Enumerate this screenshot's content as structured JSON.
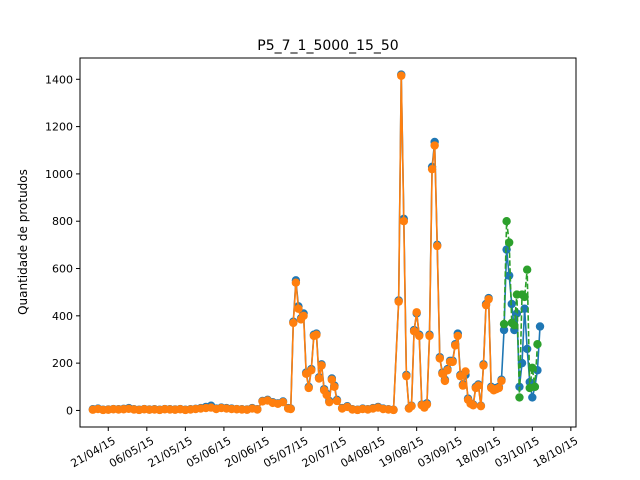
{
  "chart_data": {
    "type": "line",
    "title": "P5_7_1_5000_15_50",
    "xlabel": "",
    "ylabel": "Quantidade de protudos",
    "x_axis_type": "date",
    "xlim": [
      "2015-04-10",
      "2015-10-20"
    ],
    "ylim": [
      -70,
      1490
    ],
    "x_ticks": [
      "2015-04-21",
      "2015-05-06",
      "2015-05-21",
      "2015-06-05",
      "2015-06-20",
      "2015-07-05",
      "2015-07-20",
      "2015-08-04",
      "2015-08-19",
      "2015-09-03",
      "2015-09-18",
      "2015-10-03",
      "2015-10-18"
    ],
    "x_tick_labels": [
      "21/04/15",
      "06/05/15",
      "21/05/15",
      "05/06/15",
      "20/06/15",
      "05/07/15",
      "20/07/15",
      "04/08/15",
      "19/08/15",
      "03/09/15",
      "18/09/15",
      "03/10/15",
      "18/10/15"
    ],
    "y_ticks": [
      0,
      200,
      400,
      600,
      800,
      1000,
      1200,
      1400
    ],
    "y_tick_labels": [
      "0",
      "200",
      "400",
      "600",
      "800",
      "1000",
      "1200",
      "1400"
    ],
    "grid": false,
    "legend": false,
    "series": [
      {
        "color": "#1f77b4",
        "style": "solid",
        "marker": "circle",
        "points": [
          [
            "2015-04-15",
            5
          ],
          [
            "2015-04-17",
            8
          ],
          [
            "2015-04-19",
            3
          ],
          [
            "2015-04-21",
            4
          ],
          [
            "2015-04-23",
            6
          ],
          [
            "2015-04-25",
            5
          ],
          [
            "2015-04-27",
            7
          ],
          [
            "2015-04-29",
            10
          ],
          [
            "2015-05-01",
            5
          ],
          [
            "2015-05-03",
            3
          ],
          [
            "2015-05-05",
            6
          ],
          [
            "2015-05-07",
            4
          ],
          [
            "2015-05-09",
            5
          ],
          [
            "2015-05-11",
            3
          ],
          [
            "2015-05-13",
            6
          ],
          [
            "2015-05-15",
            5
          ],
          [
            "2015-05-17",
            4
          ],
          [
            "2015-05-19",
            6
          ],
          [
            "2015-05-21",
            3
          ],
          [
            "2015-05-23",
            5
          ],
          [
            "2015-05-25",
            7
          ],
          [
            "2015-05-27",
            10
          ],
          [
            "2015-05-29",
            15
          ],
          [
            "2015-05-31",
            20
          ],
          [
            "2015-06-02",
            8
          ],
          [
            "2015-06-04",
            12
          ],
          [
            "2015-06-06",
            10
          ],
          [
            "2015-06-08",
            8
          ],
          [
            "2015-06-10",
            6
          ],
          [
            "2015-06-12",
            5
          ],
          [
            "2015-06-14",
            4
          ],
          [
            "2015-06-16",
            10
          ],
          [
            "2015-06-18",
            5
          ],
          [
            "2015-06-20",
            40
          ],
          [
            "2015-06-22",
            45
          ],
          [
            "2015-06-24",
            35
          ],
          [
            "2015-06-26",
            30
          ],
          [
            "2015-06-28",
            38
          ],
          [
            "2015-06-30",
            10
          ],
          [
            "2015-07-01",
            8
          ],
          [
            "2015-07-02",
            375
          ],
          [
            "2015-07-03",
            550
          ],
          [
            "2015-07-04",
            440
          ],
          [
            "2015-07-05",
            390
          ],
          [
            "2015-07-06",
            410
          ],
          [
            "2015-07-07",
            160
          ],
          [
            "2015-07-08",
            100
          ],
          [
            "2015-07-09",
            175
          ],
          [
            "2015-07-10",
            320
          ],
          [
            "2015-07-11",
            325
          ],
          [
            "2015-07-12",
            140
          ],
          [
            "2015-07-13",
            195
          ],
          [
            "2015-07-14",
            90
          ],
          [
            "2015-07-15",
            70
          ],
          [
            "2015-07-16",
            40
          ],
          [
            "2015-07-17",
            135
          ],
          [
            "2015-07-18",
            105
          ],
          [
            "2015-07-19",
            45
          ],
          [
            "2015-07-21",
            10
          ],
          [
            "2015-07-23",
            18
          ],
          [
            "2015-07-25",
            5
          ],
          [
            "2015-07-27",
            3
          ],
          [
            "2015-07-29",
            8
          ],
          [
            "2015-07-31",
            5
          ],
          [
            "2015-08-02",
            10
          ],
          [
            "2015-08-04",
            15
          ],
          [
            "2015-08-06",
            8
          ],
          [
            "2015-08-08",
            5
          ],
          [
            "2015-08-10",
            3
          ],
          [
            "2015-08-12",
            465
          ],
          [
            "2015-08-13",
            1420
          ],
          [
            "2015-08-14",
            810
          ],
          [
            "2015-08-15",
            150
          ],
          [
            "2015-08-16",
            10
          ],
          [
            "2015-08-17",
            20
          ],
          [
            "2015-08-18",
            340
          ],
          [
            "2015-08-19",
            410
          ],
          [
            "2015-08-20",
            320
          ],
          [
            "2015-08-21",
            25
          ],
          [
            "2015-08-22",
            15
          ],
          [
            "2015-08-23",
            30
          ],
          [
            "2015-08-24",
            320
          ],
          [
            "2015-08-25",
            1030
          ],
          [
            "2015-08-26",
            1135
          ],
          [
            "2015-08-27",
            700
          ],
          [
            "2015-08-28",
            225
          ],
          [
            "2015-08-29",
            160
          ],
          [
            "2015-08-30",
            130
          ],
          [
            "2015-08-31",
            175
          ],
          [
            "2015-09-01",
            210
          ],
          [
            "2015-09-02",
            210
          ],
          [
            "2015-09-03",
            280
          ],
          [
            "2015-09-04",
            325
          ],
          [
            "2015-09-05",
            150
          ],
          [
            "2015-09-06",
            110
          ],
          [
            "2015-09-07",
            150
          ],
          [
            "2015-09-08",
            50
          ],
          [
            "2015-09-09",
            30
          ],
          [
            "2015-09-10",
            25
          ],
          [
            "2015-09-11",
            100
          ],
          [
            "2015-09-12",
            110
          ],
          [
            "2015-09-13",
            20
          ],
          [
            "2015-09-14",
            195
          ],
          [
            "2015-09-15",
            450
          ],
          [
            "2015-09-16",
            475
          ],
          [
            "2015-09-17",
            100
          ],
          [
            "2015-09-18",
            90
          ],
          [
            "2015-09-19",
            95
          ],
          [
            "2015-09-20",
            100
          ],
          [
            "2015-09-21",
            130
          ],
          [
            "2015-09-22",
            340
          ],
          [
            "2015-09-23",
            680
          ],
          [
            "2015-09-24",
            570
          ],
          [
            "2015-09-25",
            450
          ],
          [
            "2015-09-26",
            340
          ],
          [
            "2015-09-27",
            410
          ],
          [
            "2015-09-28",
            100
          ],
          [
            "2015-09-29",
            200
          ],
          [
            "2015-09-30",
            430
          ],
          [
            "2015-10-01",
            260
          ],
          [
            "2015-10-02",
            120
          ],
          [
            "2015-10-03",
            55
          ],
          [
            "2015-10-04",
            100
          ],
          [
            "2015-10-05",
            170
          ],
          [
            "2015-10-06",
            355
          ]
        ]
      },
      {
        "color": "#ff7f0e",
        "style": "solid",
        "marker": "circle",
        "points": [
          [
            "2015-04-15",
            3
          ],
          [
            "2015-04-17",
            6
          ],
          [
            "2015-04-19",
            2
          ],
          [
            "2015-04-21",
            3
          ],
          [
            "2015-04-23",
            5
          ],
          [
            "2015-04-25",
            4
          ],
          [
            "2015-04-27",
            5
          ],
          [
            "2015-04-29",
            7
          ],
          [
            "2015-05-01",
            4
          ],
          [
            "2015-05-03",
            2
          ],
          [
            "2015-05-05",
            5
          ],
          [
            "2015-05-07",
            3
          ],
          [
            "2015-05-09",
            4
          ],
          [
            "2015-05-11",
            2
          ],
          [
            "2015-05-13",
            5
          ],
          [
            "2015-05-15",
            4
          ],
          [
            "2015-05-17",
            3
          ],
          [
            "2015-05-19",
            5
          ],
          [
            "2015-05-21",
            2
          ],
          [
            "2015-05-23",
            4
          ],
          [
            "2015-05-25",
            6
          ],
          [
            "2015-05-27",
            8
          ],
          [
            "2015-05-29",
            10
          ],
          [
            "2015-05-31",
            12
          ],
          [
            "2015-06-02",
            6
          ],
          [
            "2015-06-04",
            10
          ],
          [
            "2015-06-06",
            8
          ],
          [
            "2015-06-08",
            6
          ],
          [
            "2015-06-10",
            5
          ],
          [
            "2015-06-12",
            4
          ],
          [
            "2015-06-14",
            3
          ],
          [
            "2015-06-16",
            8
          ],
          [
            "2015-06-18",
            4
          ],
          [
            "2015-06-20",
            38
          ],
          [
            "2015-06-22",
            42
          ],
          [
            "2015-06-24",
            32
          ],
          [
            "2015-06-26",
            28
          ],
          [
            "2015-06-28",
            35
          ],
          [
            "2015-06-30",
            8
          ],
          [
            "2015-07-01",
            6
          ],
          [
            "2015-07-02",
            370
          ],
          [
            "2015-07-03",
            540
          ],
          [
            "2015-07-04",
            430
          ],
          [
            "2015-07-05",
            385
          ],
          [
            "2015-07-06",
            400
          ],
          [
            "2015-07-07",
            155
          ],
          [
            "2015-07-08",
            95
          ],
          [
            "2015-07-09",
            170
          ],
          [
            "2015-07-10",
            315
          ],
          [
            "2015-07-11",
            320
          ],
          [
            "2015-07-12",
            135
          ],
          [
            "2015-07-13",
            190
          ],
          [
            "2015-07-14",
            85
          ],
          [
            "2015-07-15",
            65
          ],
          [
            "2015-07-16",
            35
          ],
          [
            "2015-07-17",
            130
          ],
          [
            "2015-07-18",
            100
          ],
          [
            "2015-07-19",
            40
          ],
          [
            "2015-07-21",
            8
          ],
          [
            "2015-07-23",
            15
          ],
          [
            "2015-07-25",
            4
          ],
          [
            "2015-07-27",
            2
          ],
          [
            "2015-07-29",
            6
          ],
          [
            "2015-07-31",
            4
          ],
          [
            "2015-08-02",
            8
          ],
          [
            "2015-08-04",
            12
          ],
          [
            "2015-08-06",
            6
          ],
          [
            "2015-08-08",
            4
          ],
          [
            "2015-08-10",
            2
          ],
          [
            "2015-08-12",
            460
          ],
          [
            "2015-08-13",
            1415
          ],
          [
            "2015-08-14",
            800
          ],
          [
            "2015-08-15",
            145
          ],
          [
            "2015-08-16",
            8
          ],
          [
            "2015-08-17",
            18
          ],
          [
            "2015-08-18",
            335
          ],
          [
            "2015-08-19",
            415
          ],
          [
            "2015-08-20",
            315
          ],
          [
            "2015-08-21",
            22
          ],
          [
            "2015-08-22",
            12
          ],
          [
            "2015-08-23",
            25
          ],
          [
            "2015-08-24",
            315
          ],
          [
            "2015-08-25",
            1020
          ],
          [
            "2015-08-26",
            1120
          ],
          [
            "2015-08-27",
            695
          ],
          [
            "2015-08-28",
            220
          ],
          [
            "2015-08-29",
            155
          ],
          [
            "2015-08-30",
            125
          ],
          [
            "2015-08-31",
            170
          ],
          [
            "2015-09-01",
            205
          ],
          [
            "2015-09-02",
            205
          ],
          [
            "2015-09-03",
            275
          ],
          [
            "2015-09-04",
            315
          ],
          [
            "2015-09-05",
            145
          ],
          [
            "2015-09-06",
            105
          ],
          [
            "2015-09-07",
            165
          ],
          [
            "2015-09-08",
            45
          ],
          [
            "2015-09-09",
            28
          ],
          [
            "2015-09-10",
            22
          ],
          [
            "2015-09-11",
            95
          ],
          [
            "2015-09-12",
            105
          ],
          [
            "2015-09-13",
            18
          ],
          [
            "2015-09-14",
            190
          ],
          [
            "2015-09-15",
            445
          ],
          [
            "2015-09-16",
            470
          ],
          [
            "2015-09-17",
            95
          ],
          [
            "2015-09-18",
            85
          ],
          [
            "2015-09-19",
            90
          ],
          [
            "2015-09-20",
            95
          ],
          [
            "2015-09-21",
            125
          ]
        ]
      },
      {
        "color": "#2ca02c",
        "style": "dashed",
        "marker": "circle",
        "points": [
          [
            "2015-09-22",
            365
          ],
          [
            "2015-09-23",
            800
          ],
          [
            "2015-09-24",
            710
          ],
          [
            "2015-09-25",
            370
          ],
          [
            "2015-09-26",
            360
          ],
          [
            "2015-09-27",
            490
          ],
          [
            "2015-09-28",
            55
          ],
          [
            "2015-09-29",
            490
          ],
          [
            "2015-09-30",
            480
          ],
          [
            "2015-10-01",
            595
          ],
          [
            "2015-10-02",
            95
          ],
          [
            "2015-10-03",
            180
          ],
          [
            "2015-10-04",
            100
          ],
          [
            "2015-10-05",
            280
          ]
        ]
      }
    ]
  }
}
